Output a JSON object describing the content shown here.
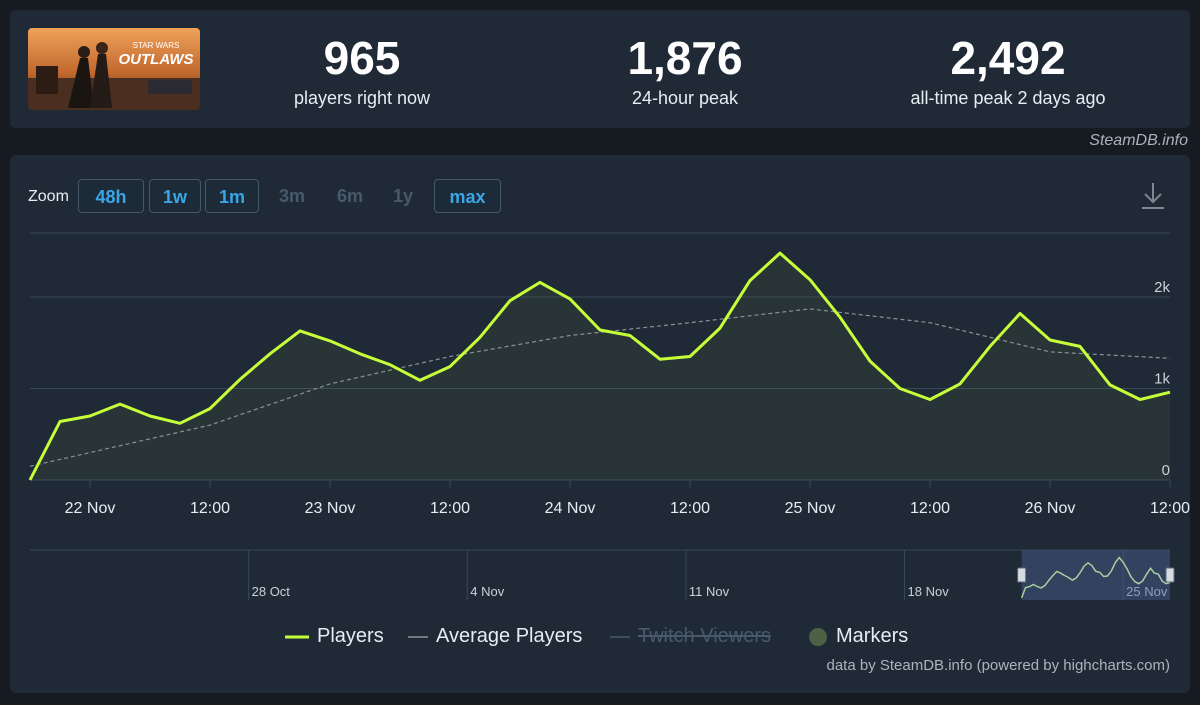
{
  "stats": [
    {
      "value": "965",
      "label": "players right now"
    },
    {
      "value": "1,876",
      "label": "24-hour peak"
    },
    {
      "value": "2,492",
      "label": "all-time peak 2 days ago"
    }
  ],
  "game": {
    "logo_line1": "STAR WARS",
    "logo_line2": "OUTLAWS"
  },
  "credit_top": "SteamDB.info",
  "zoom": {
    "label": "Zoom",
    "buttons": [
      {
        "label": "48h",
        "state": "active"
      },
      {
        "label": "1w",
        "state": "active"
      },
      {
        "label": "1m",
        "state": "active"
      },
      {
        "label": "3m",
        "state": "disabled"
      },
      {
        "label": "6m",
        "state": "disabled"
      },
      {
        "label": "1y",
        "state": "disabled"
      },
      {
        "label": "max",
        "state": "active"
      }
    ]
  },
  "legend": [
    {
      "label": "Players",
      "style": "line",
      "color": "#c6ff3a",
      "enabled": true
    },
    {
      "label": "Average Players",
      "style": "dashed",
      "color": "#8a9199",
      "enabled": true
    },
    {
      "label": "Twitch Viewers",
      "style": "line",
      "color": "#48596b",
      "enabled": false
    },
    {
      "label": "Markers",
      "style": "dot",
      "color": "#4d6145",
      "enabled": true
    }
  ],
  "credit_bottom": "data by SteamDB.info (powered by highcharts.com)",
  "chart_data": {
    "type": "line",
    "x_unit": "date-time (Nov, hours)",
    "x_ticks": [
      "22 Nov",
      "12:00",
      "23 Nov",
      "12:00",
      "24 Nov",
      "12:00",
      "25 Nov",
      "12:00",
      "26 Nov",
      "12:00"
    ],
    "y_ticks": [
      "0",
      "1k",
      "2k"
    ],
    "ylim": [
      0,
      2700
    ],
    "x_range": [
      "21 Nov 18:00",
      "26 Nov 12:00"
    ],
    "grid": true,
    "series": [
      {
        "name": "Players",
        "color": "#c6ff3a",
        "x": [
          "21 Nov 18:00",
          "21 Nov 21:00",
          "22 Nov 00:00",
          "22 Nov 03:00",
          "22 Nov 06:00",
          "22 Nov 09:00",
          "22 Nov 12:00",
          "22 Nov 15:00",
          "22 Nov 18:00",
          "22 Nov 21:00",
          "23 Nov 00:00",
          "23 Nov 03:00",
          "23 Nov 06:00",
          "23 Nov 09:00",
          "23 Nov 12:00",
          "23 Nov 15:00",
          "23 Nov 18:00",
          "23 Nov 21:00",
          "24 Nov 00:00",
          "24 Nov 03:00",
          "24 Nov 06:00",
          "24 Nov 09:00",
          "24 Nov 12:00",
          "24 Nov 15:00",
          "24 Nov 18:00",
          "24 Nov 21:00",
          "25 Nov 00:00",
          "25 Nov 03:00",
          "25 Nov 06:00",
          "25 Nov 09:00",
          "25 Nov 12:00",
          "25 Nov 15:00",
          "25 Nov 18:00",
          "25 Nov 21:00",
          "26 Nov 00:00",
          "26 Nov 03:00",
          "26 Nov 06:00",
          "26 Nov 09:00",
          "26 Nov 12:00"
        ],
        "values": [
          0,
          640,
          700,
          830,
          700,
          620,
          780,
          1100,
          1380,
          1630,
          1520,
          1380,
          1260,
          1090,
          1240,
          1560,
          1960,
          2160,
          1980,
          1640,
          1580,
          1320,
          1350,
          1660,
          2180,
          2480,
          2190,
          1780,
          1300,
          1000,
          880,
          1050,
          1460,
          1820,
          1530,
          1460,
          1040,
          880,
          960
        ]
      },
      {
        "name": "Average Players",
        "color": "#8a9199",
        "x": [
          "21 Nov 18:00",
          "22 Nov 12:00",
          "23 Nov 00:00",
          "23 Nov 12:00",
          "24 Nov 00:00",
          "24 Nov 12:00",
          "25 Nov 00:00",
          "25 Nov 12:00",
          "26 Nov 00:00",
          "26 Nov 12:00"
        ],
        "values": [
          150,
          600,
          1050,
          1350,
          1580,
          1720,
          1870,
          1720,
          1400,
          1330
        ]
      }
    ],
    "navigator": {
      "x_ticks": [
        "28 Oct",
        "4 Nov",
        "11 Nov",
        "18 Nov",
        "25 Nov"
      ],
      "selected_range": [
        "21 Nov 18:00",
        "26 Nov 12:00"
      ]
    }
  }
}
